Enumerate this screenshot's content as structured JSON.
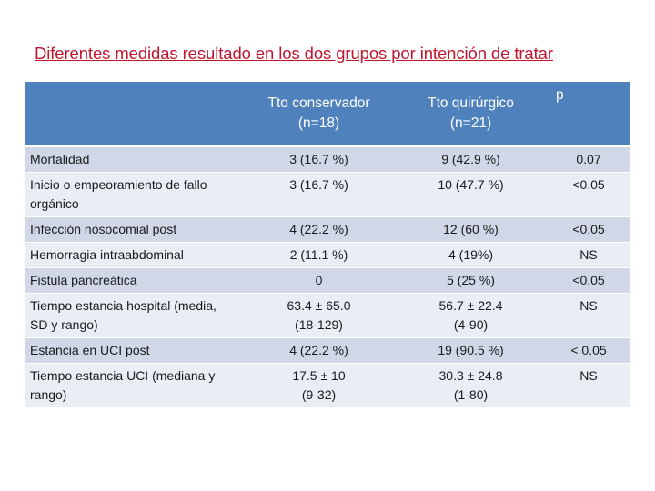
{
  "title": "Diferentes medidas resultado en los dos grupos por intención de tratar",
  "table": {
    "headers": [
      "",
      "Tto conservador\n(n=18)",
      "Tto quirúrgico\n(n=21)",
      "p"
    ],
    "rows": [
      [
        "Mortalidad",
        "3 (16.7 %)",
        "9 (42.9 %)",
        "0.07"
      ],
      [
        "Inicio o empeoramiento de fallo orgánico",
        "3 (16.7 %)",
        "10 (47.7 %)",
        "<0.05"
      ],
      [
        "Infección nosocomial post",
        "4 (22.2 %)",
        "12 (60 %)",
        "<0.05"
      ],
      [
        "Hemorragia intraabdominal",
        "2 (11.1 %)",
        "4 (19%)",
        "NS"
      ],
      [
        "Fistula pancreática",
        "0",
        "5 (25 %)",
        "<0.05"
      ],
      [
        "Tiempo estancia hospital (media, SD y rango)",
        "63.4 ± 65.0\n(18-129)",
        "56.7 ± 22.4\n(4-90)",
        "NS"
      ],
      [
        "Estancia en UCI post",
        "4 (22.2 %)",
        "19 (90.5 %)",
        "< 0.05"
      ],
      [
        "Tiempo estancia UCI (mediana y rango)",
        "17.5 ± 10\n(9-32)",
        "30.3 ± 24.8\n(1-80)",
        "NS"
      ]
    ]
  },
  "colors": {
    "title": "#c0152f",
    "header_bg": "#4f81bd",
    "row_odd": "#d0d8e8",
    "row_even": "#e9edf4"
  }
}
